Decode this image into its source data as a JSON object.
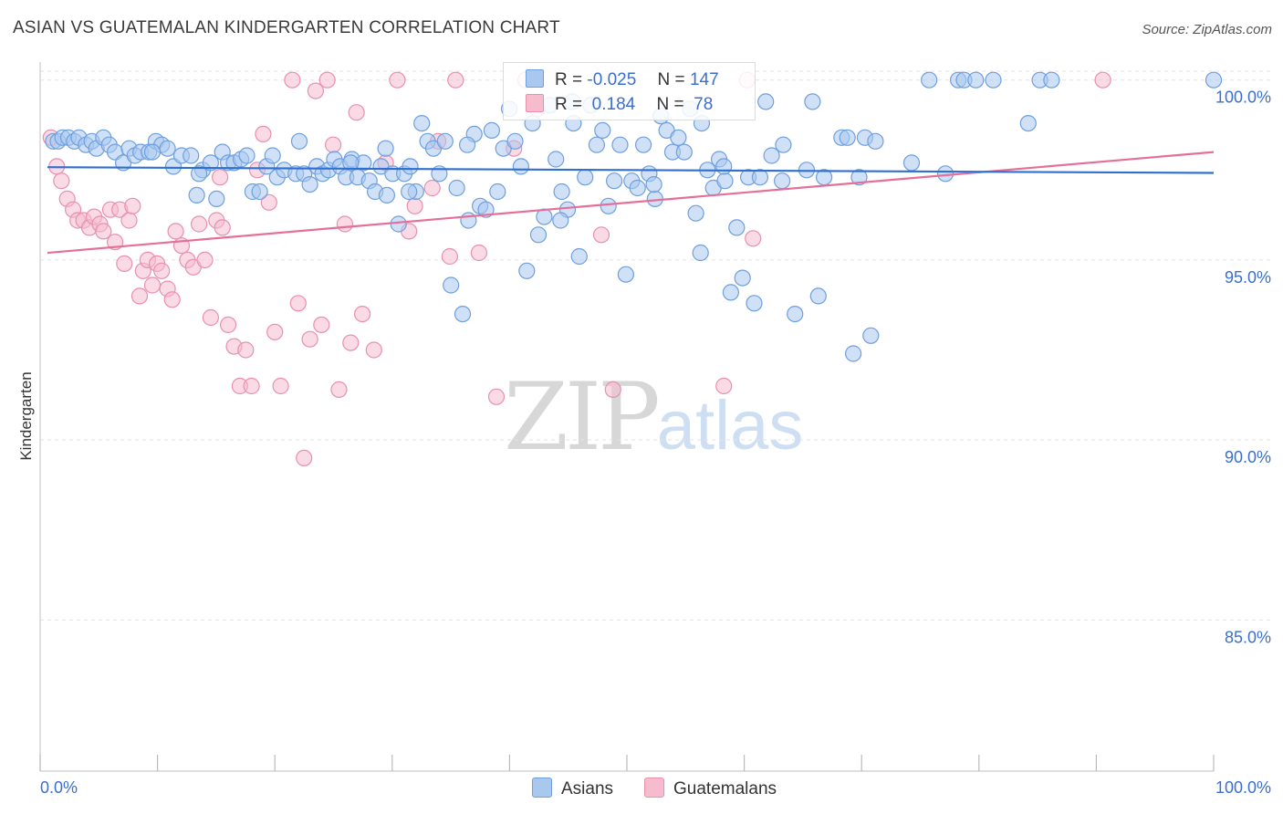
{
  "title": "ASIAN VS GUATEMALAN KINDERGARTEN CORRELATION CHART",
  "source": "Source: ZipAtlas.com",
  "watermark": {
    "part1": "ZIP",
    "part2": "atlas"
  },
  "colors": {
    "asians_fill": "#a9c8f0",
    "asians_stroke": "#6f9fdc",
    "asians_line": "#2f6fd0",
    "guatemalans_fill": "#f6bccd",
    "guatemalans_stroke": "#e890ad",
    "guatemalans_line": "#e4709a",
    "axis_text": "#3a6fd0",
    "grid": "#e3e3e3"
  },
  "legend": {
    "rows": [
      {
        "r_label": "R =",
        "r_value": "-0.025",
        "n_label": "N =",
        "n_value": "147"
      },
      {
        "r_label": "R =",
        "r_value": "0.184",
        "n_label": "N =",
        "n_value": "78"
      }
    ]
  },
  "bottom_legend": {
    "asians": "Asians",
    "guatemalans": "Guatemalans"
  },
  "chart_data": {
    "type": "scatter",
    "title": "ASIAN VS GUATEMALAN KINDERGARTEN CORRELATION CHART",
    "ylabel": "Kindergarten",
    "xlim": [
      0,
      100
    ],
    "ylim": [
      80.8,
      100.5
    ],
    "x_tick_labels": [
      "0.0%",
      "100.0%"
    ],
    "y_ticks": [
      85,
      90,
      95,
      100
    ],
    "y_tick_labels": [
      "85.0%",
      "90.0%",
      "95.0%",
      "100.0%"
    ],
    "grid": true,
    "legend_position": "top-center",
    "series": [
      {
        "name": "Asians",
        "R": -0.025,
        "N": 147,
        "trend": {
          "x": [
            0,
            100
          ],
          "y": [
            97.58,
            97.42
          ]
        },
        "points": [
          [
            0.5,
            98.3
          ],
          [
            0.9,
            98.3
          ],
          [
            1.3,
            98.4
          ],
          [
            1.8,
            98.4
          ],
          [
            2.3,
            98.3
          ],
          [
            2.7,
            98.4
          ],
          [
            3.3,
            98.2
          ],
          [
            3.8,
            98.3
          ],
          [
            4.2,
            98.1
          ],
          [
            4.8,
            98.4
          ],
          [
            5.3,
            98.2
          ],
          [
            5.8,
            98.0
          ],
          [
            6.5,
            97.7
          ],
          [
            7.0,
            98.1
          ],
          [
            7.5,
            97.9
          ],
          [
            8.0,
            98.0
          ],
          [
            8.7,
            98.0
          ],
          [
            9.3,
            98.3
          ],
          [
            9.8,
            98.2
          ],
          [
            10.3,
            98.1
          ],
          [
            10.8,
            97.6
          ],
          [
            11.5,
            97.9
          ],
          [
            12.3,
            97.9
          ],
          [
            12.8,
            96.8
          ],
          [
            13.3,
            97.5
          ],
          [
            14.0,
            97.7
          ],
          [
            14.5,
            96.7
          ],
          [
            15.0,
            98.0
          ],
          [
            15.5,
            97.7
          ],
          [
            16.0,
            97.7
          ],
          [
            16.6,
            97.8
          ],
          [
            17.1,
            97.9
          ],
          [
            17.6,
            96.9
          ],
          [
            18.2,
            96.9
          ],
          [
            18.8,
            97.6
          ],
          [
            19.3,
            97.9
          ],
          [
            19.7,
            97.3
          ],
          [
            20.3,
            97.5
          ],
          [
            21.3,
            97.4
          ],
          [
            21.6,
            98.3
          ],
          [
            22.0,
            97.4
          ],
          [
            22.5,
            97.1
          ],
          [
            23.1,
            97.6
          ],
          [
            23.6,
            97.4
          ],
          [
            24.1,
            97.5
          ],
          [
            24.6,
            97.8
          ],
          [
            25.1,
            97.6
          ],
          [
            25.6,
            97.3
          ],
          [
            26.1,
            97.8
          ],
          [
            26.6,
            97.3
          ],
          [
            27.1,
            97.7
          ],
          [
            27.6,
            97.2
          ],
          [
            28.1,
            96.9
          ],
          [
            28.6,
            97.6
          ],
          [
            29.1,
            96.8
          ],
          [
            29.6,
            97.4
          ],
          [
            30.1,
            96.0
          ],
          [
            30.6,
            97.4
          ],
          [
            31.1,
            97.6
          ],
          [
            31.6,
            96.9
          ],
          [
            32.1,
            98.8
          ],
          [
            32.6,
            98.3
          ],
          [
            33.1,
            98.1
          ],
          [
            33.6,
            97.4
          ],
          [
            34.1,
            98.3
          ],
          [
            34.6,
            94.3
          ],
          [
            35.1,
            97.0
          ],
          [
            35.6,
            93.5
          ],
          [
            36.1,
            96.1
          ],
          [
            36.6,
            98.5
          ],
          [
            37.1,
            96.5
          ],
          [
            37.6,
            96.4
          ],
          [
            38.1,
            98.6
          ],
          [
            38.6,
            96.9
          ],
          [
            39.1,
            98.1
          ],
          [
            39.6,
            99.2
          ],
          [
            40.1,
            98.3
          ],
          [
            40.6,
            97.6
          ],
          [
            41.1,
            94.7
          ],
          [
            41.6,
            98.8
          ],
          [
            42.1,
            95.7
          ],
          [
            42.6,
            96.2
          ],
          [
            43.1,
            99.3
          ],
          [
            43.6,
            97.8
          ],
          [
            44.1,
            96.9
          ],
          [
            44.6,
            96.4
          ],
          [
            45.1,
            98.8
          ],
          [
            45.6,
            95.1
          ],
          [
            46.1,
            97.3
          ],
          [
            46.6,
            99.3
          ],
          [
            47.1,
            98.2
          ],
          [
            47.6,
            98.6
          ],
          [
            48.1,
            96.5
          ],
          [
            48.6,
            97.2
          ],
          [
            49.1,
            98.2
          ],
          [
            49.6,
            94.6
          ],
          [
            50.1,
            97.2
          ],
          [
            50.6,
            97.0
          ],
          [
            51.1,
            98.2
          ],
          [
            51.6,
            97.4
          ],
          [
            52.1,
            96.7
          ],
          [
            52.6,
            99.0
          ],
          [
            53.1,
            98.6
          ],
          [
            53.6,
            98.0
          ],
          [
            54.1,
            98.4
          ],
          [
            54.6,
            98.0
          ],
          [
            55.1,
            99.2
          ],
          [
            55.6,
            96.3
          ],
          [
            56.1,
            98.8
          ],
          [
            56.6,
            97.5
          ],
          [
            57.1,
            97.0
          ],
          [
            57.6,
            97.8
          ],
          [
            58.1,
            97.2
          ],
          [
            58.6,
            94.1
          ],
          [
            59.1,
            95.9
          ],
          [
            59.6,
            94.5
          ],
          [
            60.1,
            97.3
          ],
          [
            60.6,
            93.8
          ],
          [
            61.1,
            97.3
          ],
          [
            61.6,
            99.4
          ],
          [
            62.1,
            97.9
          ],
          [
            63.1,
            98.2
          ],
          [
            64.1,
            93.5
          ],
          [
            65.1,
            97.5
          ],
          [
            65.6,
            99.4
          ],
          [
            66.1,
            94.0
          ],
          [
            66.6,
            97.3
          ],
          [
            68.1,
            98.4
          ],
          [
            68.6,
            98.4
          ],
          [
            69.1,
            92.4
          ],
          [
            69.6,
            97.3
          ],
          [
            70.1,
            98.4
          ],
          [
            70.6,
            92.9
          ],
          [
            74.1,
            97.7
          ],
          [
            75.6,
            100.0
          ],
          [
            78.1,
            100.0
          ],
          [
            78.6,
            100.0
          ],
          [
            79.6,
            100.0
          ],
          [
            81.1,
            100.0
          ],
          [
            84.1,
            98.8
          ],
          [
            85.1,
            100.0
          ],
          [
            86.1,
            100.0
          ],
          [
            100.0,
            100.0
          ],
          [
            9.0,
            98.0
          ],
          [
            13.0,
            97.4
          ],
          [
            26.0,
            97.7
          ],
          [
            31.0,
            96.9
          ],
          [
            45.0,
            99.4
          ],
          [
            52.0,
            97.1
          ],
          [
            56.0,
            95.2
          ],
          [
            63.0,
            97.2
          ],
          [
            71.0,
            98.3
          ],
          [
            77.0,
            97.4
          ],
          [
            36.0,
            98.2
          ],
          [
            44.0,
            96.1
          ],
          [
            58.0,
            97.6
          ],
          [
            29.0,
            98.1
          ]
        ]
      },
      {
        "name": "Guatemalans",
        "R": 0.184,
        "N": 78,
        "trend": {
          "x": [
            0,
            100
          ],
          "y": [
            95.2,
            98.0
          ]
        },
        "points": [
          [
            0.3,
            98.4
          ],
          [
            0.8,
            97.6
          ],
          [
            1.2,
            97.2
          ],
          [
            1.7,
            96.7
          ],
          [
            2.2,
            96.4
          ],
          [
            2.6,
            96.1
          ],
          [
            3.1,
            96.1
          ],
          [
            3.6,
            95.9
          ],
          [
            4.0,
            96.2
          ],
          [
            4.5,
            96.0
          ],
          [
            4.8,
            95.8
          ],
          [
            5.4,
            96.4
          ],
          [
            5.8,
            95.5
          ],
          [
            6.2,
            96.4
          ],
          [
            6.6,
            94.9
          ],
          [
            7.0,
            96.1
          ],
          [
            7.3,
            96.5
          ],
          [
            7.9,
            94.0
          ],
          [
            8.2,
            94.7
          ],
          [
            8.6,
            95.0
          ],
          [
            9.0,
            94.3
          ],
          [
            9.4,
            94.9
          ],
          [
            9.8,
            94.7
          ],
          [
            10.3,
            94.2
          ],
          [
            10.7,
            93.9
          ],
          [
            11.0,
            95.8
          ],
          [
            11.5,
            95.4
          ],
          [
            12.0,
            95.0
          ],
          [
            12.5,
            94.8
          ],
          [
            13.0,
            96.0
          ],
          [
            13.5,
            95.0
          ],
          [
            14.0,
            93.4
          ],
          [
            14.5,
            96.1
          ],
          [
            15.0,
            95.9
          ],
          [
            15.5,
            93.2
          ],
          [
            16.0,
            92.6
          ],
          [
            16.5,
            91.5
          ],
          [
            17.0,
            92.5
          ],
          [
            17.5,
            91.5
          ],
          [
            18.0,
            97.5
          ],
          [
            18.5,
            98.5
          ],
          [
            19.0,
            96.6
          ],
          [
            19.5,
            93.0
          ],
          [
            20.0,
            91.5
          ],
          [
            21.0,
            100.0
          ],
          [
            21.5,
            93.8
          ],
          [
            22.0,
            89.5
          ],
          [
            22.5,
            92.8
          ],
          [
            23.0,
            99.7
          ],
          [
            23.5,
            93.2
          ],
          [
            24.0,
            100.0
          ],
          [
            24.5,
            98.2
          ],
          [
            25.0,
            91.4
          ],
          [
            25.5,
            96.0
          ],
          [
            26.0,
            92.7
          ],
          [
            26.5,
            99.1
          ],
          [
            27.0,
            93.5
          ],
          [
            28.0,
            92.5
          ],
          [
            29.0,
            97.7
          ],
          [
            30.0,
            100.0
          ],
          [
            31.0,
            95.8
          ],
          [
            31.5,
            96.5
          ],
          [
            33.0,
            97.0
          ],
          [
            33.5,
            98.3
          ],
          [
            34.5,
            95.1
          ],
          [
            35.0,
            100.0
          ],
          [
            37.0,
            95.2
          ],
          [
            38.5,
            91.2
          ],
          [
            40.0,
            98.1
          ],
          [
            41.0,
            100.0
          ],
          [
            42.0,
            99.2
          ],
          [
            47.5,
            95.7
          ],
          [
            48.5,
            91.4
          ],
          [
            58.0,
            91.5
          ],
          [
            60.0,
            100.0
          ],
          [
            60.5,
            95.6
          ],
          [
            90.5,
            100.0
          ],
          [
            14.8,
            97.3
          ]
        ]
      }
    ]
  }
}
